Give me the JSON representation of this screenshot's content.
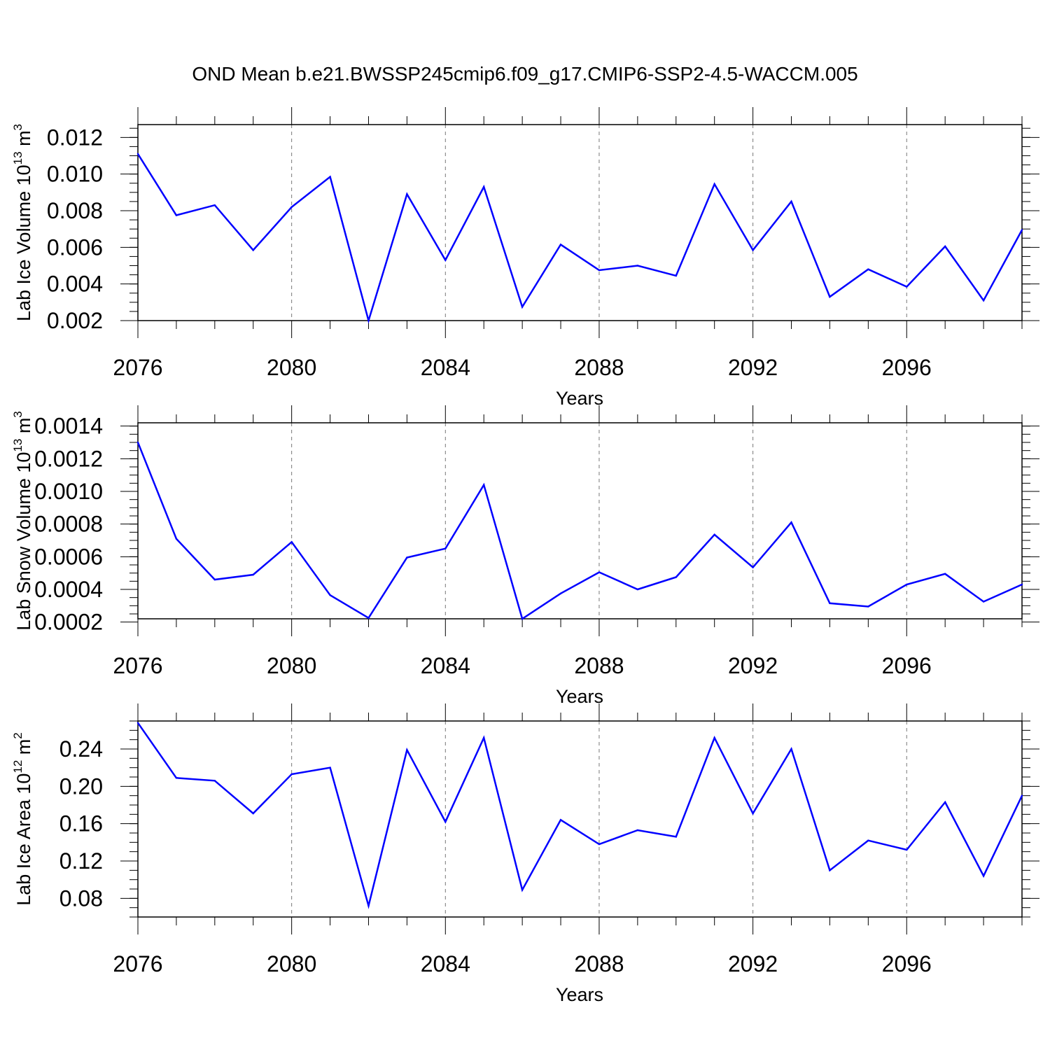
{
  "title": "OND Mean b.e21.BWSSP245cmip6.f09_g17.CMIP6-SSP2-4.5-WACCM.005",
  "line_color": "#0000ff",
  "chart_data": [
    {
      "type": "line",
      "title": "OND Mean b.e21.BWSSP245cmip6.f09_g17.CMIP6-SSP2-4.5-WACCM.005",
      "xlabel": "Years",
      "ylabel": "Lab Ice Volume 10",
      "ylabel_exp": "13",
      "ylabel_unit": " m",
      "ylabel_unit_exp": "3",
      "xlim": [
        2076,
        2099
      ],
      "ylim": [
        0.002,
        0.0127
      ],
      "x_major_ticks": [
        2076,
        2080,
        2084,
        2088,
        2092,
        2096
      ],
      "x_tick_labels": [
        "2076",
        "2080",
        "2084",
        "2088",
        "2092",
        "2096"
      ],
      "y_major_ticks": [
        0.002,
        0.004,
        0.006,
        0.008,
        0.01,
        0.012
      ],
      "y_tick_labels": [
        "0.002",
        "0.004",
        "0.006",
        "0.008",
        "0.010",
        "0.012"
      ],
      "y_minor_step": 0.0005,
      "x": [
        2076,
        2077,
        2078,
        2079,
        2080,
        2081,
        2082,
        2083,
        2084,
        2085,
        2086,
        2087,
        2088,
        2089,
        2090,
        2091,
        2092,
        2093,
        2094,
        2095,
        2096,
        2097,
        2098,
        2099
      ],
      "values": [
        0.0111,
        0.00775,
        0.0083,
        0.00585,
        0.0082,
        0.00985,
        0.002,
        0.0089,
        0.0053,
        0.0093,
        0.00275,
        0.00615,
        0.00475,
        0.005,
        0.00445,
        0.00945,
        0.00585,
        0.0085,
        0.0033,
        0.0048,
        0.00385,
        0.00605,
        0.0031,
        0.00695
      ]
    },
    {
      "type": "line",
      "xlabel": "Years",
      "ylabel": "Lab Snow Volume 10",
      "ylabel_exp": "13",
      "ylabel_unit": " m",
      "ylabel_unit_exp": "3",
      "xlim": [
        2076,
        2099
      ],
      "ylim": [
        0.00022,
        0.00142
      ],
      "x_major_ticks": [
        2076,
        2080,
        2084,
        2088,
        2092,
        2096
      ],
      "x_tick_labels": [
        "2076",
        "2080",
        "2084",
        "2088",
        "2092",
        "2096"
      ],
      "y_major_ticks": [
        0.0002,
        0.0004,
        0.0006,
        0.0008,
        0.001,
        0.0012,
        0.0014
      ],
      "y_tick_labels": [
        "0.0002",
        "0.0004",
        "0.0006",
        "0.0008",
        "0.0010",
        "0.0012",
        "0.0014"
      ],
      "y_minor_step": 5e-05,
      "x": [
        2076,
        2077,
        2078,
        2079,
        2080,
        2081,
        2082,
        2083,
        2084,
        2085,
        2086,
        2087,
        2088,
        2089,
        2090,
        2091,
        2092,
        2093,
        2094,
        2095,
        2096,
        2097,
        2098,
        2099
      ],
      "values": [
        0.0013,
        0.00071,
        0.00046,
        0.00049,
        0.00069,
        0.000365,
        0.000225,
        0.000595,
        0.00065,
        0.00104,
        0.00022,
        0.000375,
        0.000505,
        0.0004,
        0.000475,
        0.000735,
        0.000535,
        0.00081,
        0.000315,
        0.000295,
        0.00043,
        0.000495,
        0.000325,
        0.00043
      ]
    },
    {
      "type": "line",
      "xlabel": "Years",
      "ylabel": "Lab Ice Area 10",
      "ylabel_exp": "12",
      "ylabel_unit": " m",
      "ylabel_unit_exp": "2",
      "xlim": [
        2076,
        2099
      ],
      "ylim": [
        0.06,
        0.27
      ],
      "x_major_ticks": [
        2076,
        2080,
        2084,
        2088,
        2092,
        2096
      ],
      "x_tick_labels": [
        "2076",
        "2080",
        "2084",
        "2088",
        "2092",
        "2096"
      ],
      "y_major_ticks": [
        0.08,
        0.12,
        0.16,
        0.2,
        0.24
      ],
      "y_tick_labels": [
        "0.08",
        "0.12",
        "0.16",
        "0.20",
        "0.24"
      ],
      "y_minor_step": 0.01,
      "x": [
        2076,
        2077,
        2078,
        2079,
        2080,
        2081,
        2082,
        2083,
        2084,
        2085,
        2086,
        2087,
        2088,
        2089,
        2090,
        2091,
        2092,
        2093,
        2094,
        2095,
        2096,
        2097,
        2098,
        2099
      ],
      "values": [
        0.268,
        0.209,
        0.206,
        0.171,
        0.213,
        0.22,
        0.072,
        0.239,
        0.162,
        0.252,
        0.089,
        0.164,
        0.138,
        0.153,
        0.146,
        0.252,
        0.171,
        0.24,
        0.11,
        0.142,
        0.132,
        0.183,
        0.104,
        0.19
      ]
    }
  ]
}
